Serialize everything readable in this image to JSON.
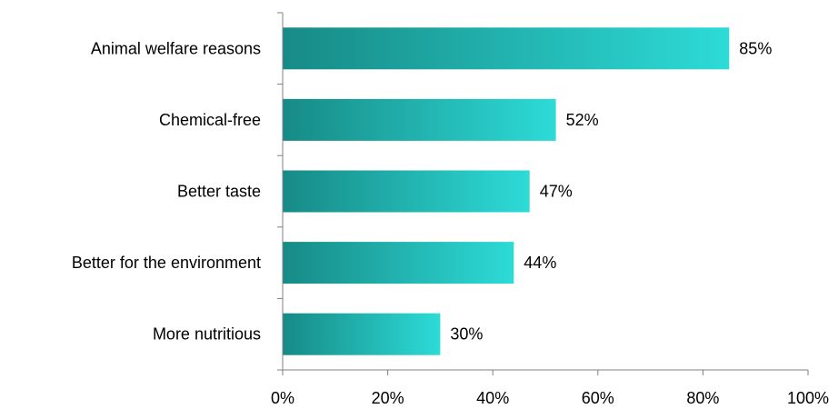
{
  "chart_data": {
    "type": "bar",
    "orientation": "horizontal",
    "categories": [
      "Animal welfare reasons",
      "Chemical-free",
      "Better taste",
      "Better for the environment",
      "More nutritious"
    ],
    "values": [
      85,
      52,
      47,
      44,
      30
    ],
    "value_labels": [
      "85%",
      "52%",
      "47%",
      "44%",
      "30%"
    ],
    "xlim": [
      0,
      100
    ],
    "x_ticks": [
      0,
      20,
      40,
      60,
      80,
      100
    ],
    "x_tick_labels": [
      "0%",
      "20%",
      "40%",
      "60%",
      "80%",
      "100%"
    ],
    "grid": false,
    "legend": "none",
    "bar_gradient": [
      "#178a86",
      "#2ddbd7"
    ],
    "axis_color": "#808080"
  }
}
